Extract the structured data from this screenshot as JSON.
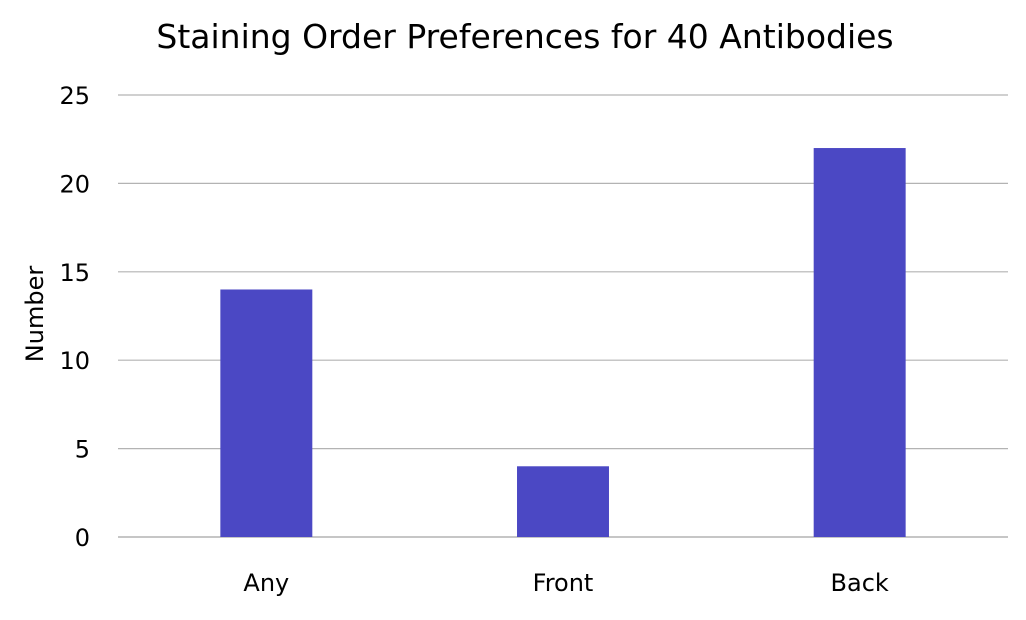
{
  "chart_data": {
    "type": "bar",
    "title": "Staining Order Preferences for 40 Antibodies",
    "xlabel": "",
    "ylabel": "Number",
    "categories": [
      "Any",
      "Front",
      "Back"
    ],
    "values": [
      14,
      4,
      22
    ],
    "ylim": [
      0,
      25
    ],
    "yticks": [
      0,
      5,
      10,
      15,
      20,
      25
    ],
    "grid": true,
    "legend": "none",
    "bar_color": "#4b48c4",
    "grid_color": "#b3b3b3"
  }
}
